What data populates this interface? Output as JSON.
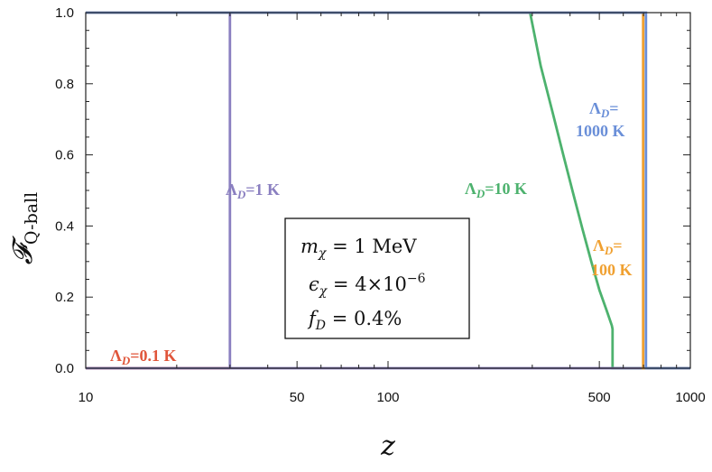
{
  "chart_data": {
    "type": "line",
    "x_scale": "log",
    "xlabel": "z",
    "ylabel": "𝓕",
    "ylabel_sub": "Q-ball",
    "xlim": [
      10,
      1000
    ],
    "ylim": [
      0,
      1
    ],
    "x_ticks": [
      10,
      50,
      100,
      500,
      1000
    ],
    "y_ticks": [
      0.0,
      0.2,
      0.4,
      0.6,
      0.8,
      1.0
    ],
    "y_tick_labels": [
      "0.0",
      "0.2",
      "0.4",
      "0.6",
      "0.8",
      "1.0"
    ],
    "grid": false,
    "series": [
      {
        "label_parts": [
          "Λ",
          "D",
          "=0.1 K"
        ],
        "color": "#e0553a",
        "points": [
          [
            10,
            0
          ],
          [
            30,
            0
          ]
        ]
      },
      {
        "label_parts": [
          "Λ",
          "D",
          "=1 K"
        ],
        "color": "#8a7fc0",
        "points": [
          [
            10,
            0
          ],
          [
            30,
            0
          ],
          [
            30,
            1
          ],
          [
            30,
            0
          ],
          [
            1000,
            0
          ]
        ]
      },
      {
        "label_parts": [
          "Λ",
          "D",
          "=10 K"
        ],
        "color": "#4db26e",
        "points": [
          [
            295,
            1
          ],
          [
            320,
            0.85
          ],
          [
            350,
            0.72
          ],
          [
            380,
            0.6
          ],
          [
            410,
            0.49
          ],
          [
            440,
            0.39
          ],
          [
            470,
            0.3
          ],
          [
            500,
            0.22
          ],
          [
            530,
            0.16
          ],
          [
            550,
            0.12
          ],
          [
            553,
            0.11
          ],
          [
            553,
            0
          ],
          [
            1000,
            0
          ]
        ]
      },
      {
        "label_parts": [
          "Λ",
          "D",
          "=",
          "100 K"
        ],
        "color": "#f0a030",
        "points": [
          [
            10,
            1
          ],
          [
            698,
            1
          ],
          [
            698,
            0
          ],
          [
            1000,
            0
          ]
        ]
      },
      {
        "label_parts": [
          "Λ",
          "D",
          "=",
          "1000 K"
        ],
        "color": "#6a8fd8",
        "points": [
          [
            10,
            1
          ],
          [
            713,
            1
          ],
          [
            713,
            0
          ],
          [
            1000,
            0
          ]
        ]
      }
    ],
    "inset_box": {
      "line1": [
        "m",
        "χ",
        " = 1 MeV"
      ],
      "line2": [
        "ϵ",
        "χ",
        " = 4×10",
        "−6"
      ],
      "line3": [
        "f",
        "D",
        " = 0.4%"
      ]
    }
  }
}
